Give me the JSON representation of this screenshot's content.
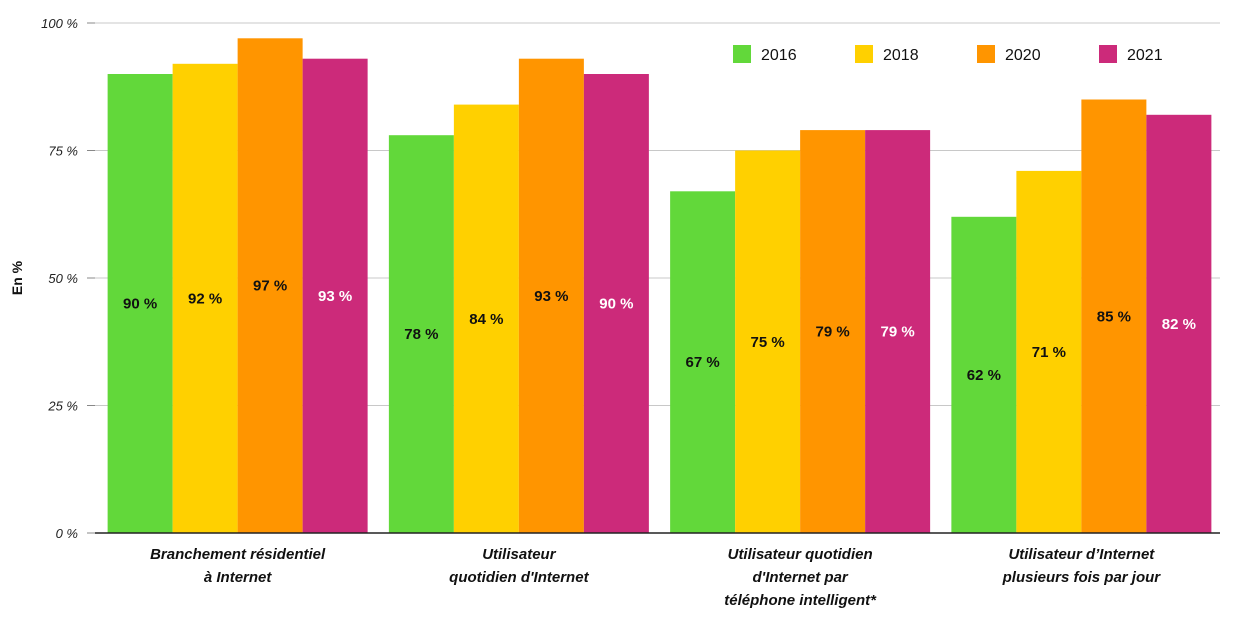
{
  "chart_data": {
    "type": "bar",
    "ylabel": "En %",
    "ylim": [
      0,
      100
    ],
    "yticks": [
      0,
      25,
      50,
      75,
      100
    ],
    "ytick_labels": [
      "0 %",
      "25 %",
      "50 %",
      "75 %",
      "100 %"
    ],
    "grid": true,
    "legend_position": "top-right",
    "categories": [
      [
        "Branchement résidentiel",
        "à Internet"
      ],
      [
        "Utilisateur",
        "quotidien d'Internet"
      ],
      [
        "Utilisateur quotidien",
        "d'Internet par",
        "téléphone intelligent*"
      ],
      [
        "Utilisateur d’Internet",
        "plusieurs fois par jour"
      ]
    ],
    "series": [
      {
        "name": "2016",
        "color": "#62d83a",
        "label_color": "#111111",
        "values": [
          90,
          78,
          67,
          62
        ],
        "labels": [
          "90 %",
          "78 %",
          "67 %",
          "62 %"
        ]
      },
      {
        "name": "2018",
        "color": "#ffd000",
        "label_color": "#111111",
        "values": [
          92,
          84,
          75,
          71
        ],
        "labels": [
          "92 %",
          "84 %",
          "75 %",
          "71 %"
        ]
      },
      {
        "name": "2020",
        "color": "#ff9500",
        "label_color": "#111111",
        "values": [
          97,
          93,
          79,
          85
        ],
        "labels": [
          "97 %",
          "93 %",
          "79 %",
          "85 %"
        ]
      },
      {
        "name": "2021",
        "color": "#cc2a7a",
        "label_color": "#ffffff",
        "values": [
          93,
          90,
          79,
          82
        ],
        "labels": [
          "93 %",
          "90 %",
          "79 %",
          "82 %"
        ]
      }
    ]
  }
}
